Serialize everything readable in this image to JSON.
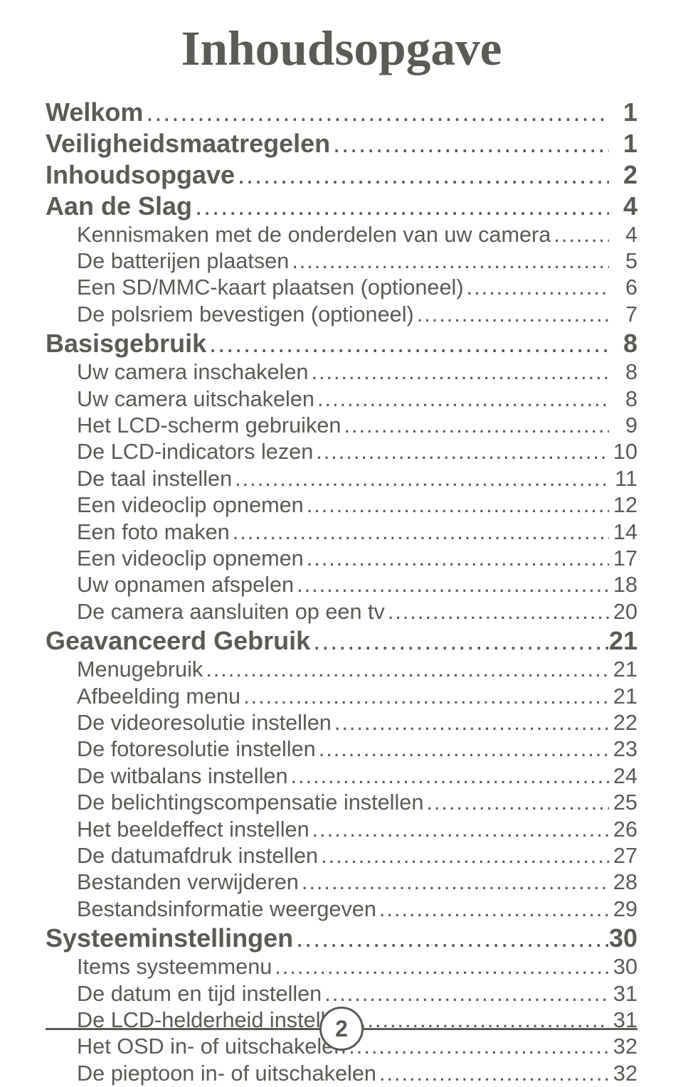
{
  "title": "Inhoudsopgave",
  "page_number": "2",
  "style": {
    "text_color": "#5c5a55",
    "title_fontsize_pt": 52,
    "h1_fontsize_pt": 27,
    "item_fontsize_pt": 23,
    "footer_line_color": "#5c5a55",
    "footer_badge_border_color": "#5c5a55",
    "footer_badge_text_color": "#5c5a55",
    "footer_badge_fontsize_pt": 24
  },
  "toc": [
    {
      "label": "Welkom",
      "page": "1",
      "level": 0
    },
    {
      "label": "Veiligheidsmaatregelen",
      "page": "1",
      "level": 0
    },
    {
      "label": "Inhoudsopgave",
      "page": "2",
      "level": 0
    },
    {
      "label": "Aan de Slag",
      "page": "4",
      "level": 0
    },
    {
      "label": "Kennismaken met de onderdelen van uw camera",
      "page": "4",
      "level": 1
    },
    {
      "label": "De batterijen plaatsen",
      "page": "5",
      "level": 1
    },
    {
      "label": "Een SD/MMC-kaart plaatsen (optioneel)",
      "page": "6",
      "level": 1
    },
    {
      "label": "De polsriem bevestigen (optioneel)",
      "page": "7",
      "level": 1
    },
    {
      "label": "Basisgebruik",
      "page": "8",
      "level": 0
    },
    {
      "label": "Uw camera inschakelen",
      "page": "8",
      "level": 1
    },
    {
      "label": "Uw camera uitschakelen",
      "page": "8",
      "level": 1
    },
    {
      "label": "Het LCD-scherm gebruiken",
      "page": "9",
      "level": 1
    },
    {
      "label": "De LCD-indicators lezen",
      "page": "10",
      "level": 1
    },
    {
      "label": "De taal instellen",
      "page": "11",
      "level": 1
    },
    {
      "label": "Een videoclip opnemen",
      "page": "12",
      "level": 1
    },
    {
      "label": "Een foto maken",
      "page": "14",
      "level": 1
    },
    {
      "label": "Een videoclip opnemen",
      "page": "17",
      "level": 1
    },
    {
      "label": "Uw opnamen afspelen",
      "page": "18",
      "level": 1
    },
    {
      "label": "De camera aansluiten op een tv",
      "page": "20",
      "level": 1
    },
    {
      "label": "Geavanceerd Gebruik",
      "page": "21",
      "level": 0
    },
    {
      "label": "Menugebruik",
      "page": "21",
      "level": 1
    },
    {
      "label": "Afbeelding menu",
      "page": "21",
      "level": 1
    },
    {
      "label": "De videoresolutie instellen",
      "page": "22",
      "level": 1
    },
    {
      "label": "De fotoresolutie instellen",
      "page": "23",
      "level": 1
    },
    {
      "label": "De witbalans instellen",
      "page": "24",
      "level": 1
    },
    {
      "label": "De belichtingscompensatie instellen",
      "page": "25",
      "level": 1
    },
    {
      "label": "Het beeldeffect instellen",
      "page": "26",
      "level": 1
    },
    {
      "label": "De datumafdruk instellen",
      "page": "27",
      "level": 1
    },
    {
      "label": "Bestanden verwijderen",
      "page": "28",
      "level": 1
    },
    {
      "label": "Bestandsinformatie weergeven",
      "page": "29",
      "level": 1
    },
    {
      "label": "Systeeminstellingen",
      "page": "30",
      "level": 0
    },
    {
      "label": "Items systeemmenu",
      "page": "30",
      "level": 1
    },
    {
      "label": "De datum en tijd instellen",
      "page": "31",
      "level": 1
    },
    {
      "label": "De LCD-helderheid instellen",
      "page": "31",
      "level": 1
    },
    {
      "label": "Het OSD in- of uitschakelen",
      "page": "32",
      "level": 1
    },
    {
      "label": "De pieptoon in- of uitschakelen",
      "page": "32",
      "level": 1
    }
  ]
}
